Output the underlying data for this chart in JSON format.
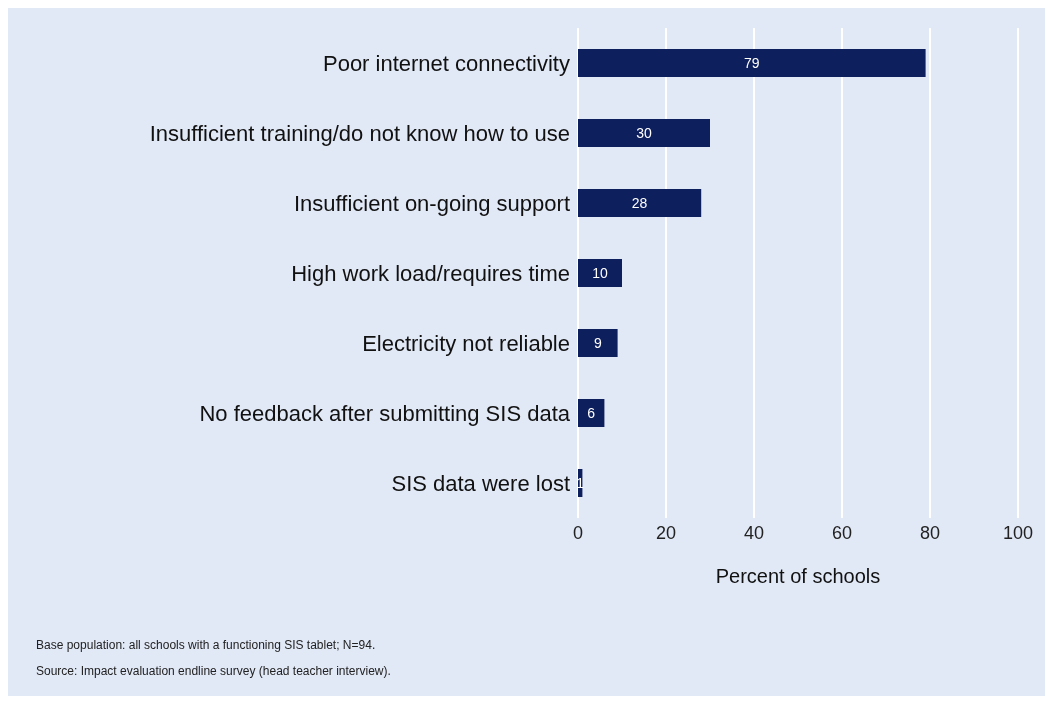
{
  "chart_data": {
    "type": "bar",
    "orientation": "horizontal",
    "xlabel": "Percent of schools",
    "categories": [
      "Poor internet connectivity",
      "Insufficient training/do not know how to use",
      "Insufficient on-going support",
      "High work load/requires time",
      "Electricity not reliable",
      "No feedback after submitting SIS data",
      "SIS data were lost"
    ],
    "values": [
      79,
      30,
      28,
      10,
      9,
      6,
      1
    ],
    "color": "#0d1f5c",
    "xlim": [
      0,
      100
    ],
    "xticks": [
      0,
      20,
      40,
      60,
      80,
      100
    ],
    "grid": "x",
    "data_labels": true,
    "annotations": [
      "Base population: all schools with a functioning SIS tablet; N=94.",
      "Source: Impact evaluation endline survey (head teacher interview)."
    ]
  }
}
